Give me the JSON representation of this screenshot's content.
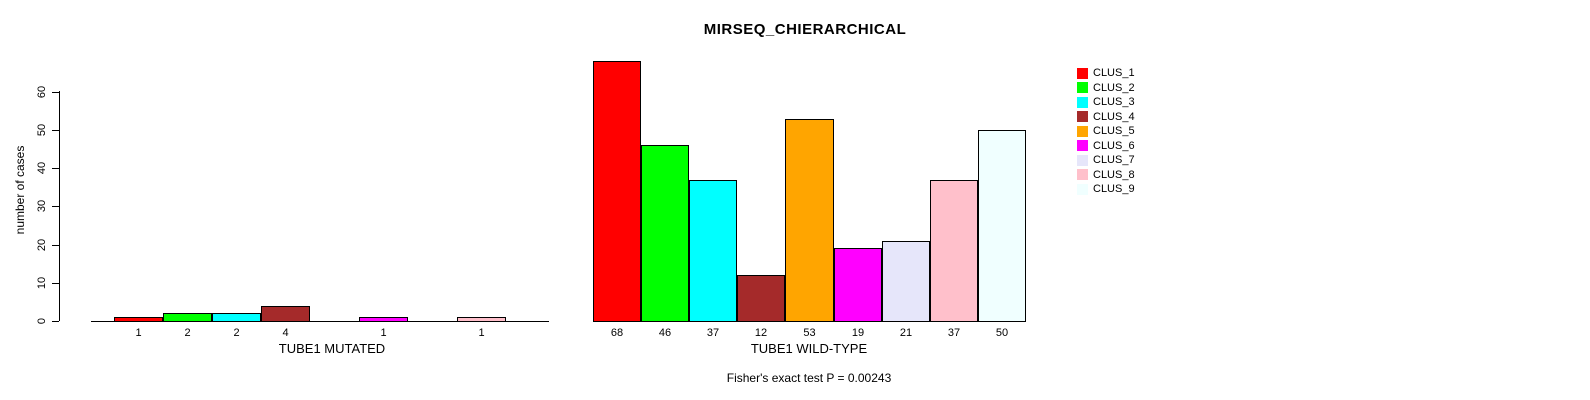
{
  "chart_data": {
    "type": "bar",
    "title": "MIRSEQ_CHIERARCHICAL",
    "ylabel": "number of cases",
    "y_ticks": [
      0,
      10,
      20,
      30,
      40,
      50,
      60
    ],
    "ylim": [
      0,
      68
    ],
    "grid": false,
    "categories": [
      "CLUS_1",
      "CLUS_2",
      "CLUS_3",
      "CLUS_4",
      "CLUS_5",
      "CLUS_6",
      "CLUS_7",
      "CLUS_8",
      "CLUS_9"
    ],
    "groups": [
      {
        "xlabel": "TUBE1 MUTATED",
        "values": [
          1,
          2,
          2,
          4,
          0,
          1,
          0,
          1,
          0
        ],
        "bar_labels": [
          "1",
          "2",
          "2",
          "4",
          "",
          "1",
          "",
          "1",
          ""
        ]
      },
      {
        "xlabel": "TUBE1 WILD-TYPE",
        "values": [
          68,
          46,
          37,
          12,
          53,
          19,
          21,
          37,
          50
        ],
        "bar_labels": [
          "68",
          "46",
          "37",
          "12",
          "53",
          "19",
          "21",
          "37",
          "50"
        ]
      }
    ],
    "legend": {
      "position": "right",
      "entries": [
        {
          "label": "CLUS_1",
          "color": "#FF0000"
        },
        {
          "label": "CLUS_2",
          "color": "#00FF00"
        },
        {
          "label": "CLUS_3",
          "color": "#00FFFF"
        },
        {
          "label": "CLUS_4",
          "color": "#A52A2A"
        },
        {
          "label": "CLUS_5",
          "color": "#FFA500"
        },
        {
          "label": "CLUS_6",
          "color": "#FF00FF"
        },
        {
          "label": "CLUS_7",
          "color": "#E6E6FA"
        },
        {
          "label": "CLUS_8",
          "color": "#FFC0CB"
        },
        {
          "label": "CLUS_9",
          "color": "#F0FFFF"
        }
      ]
    },
    "footnote": "Fisher's exact test P = 0.00243"
  }
}
